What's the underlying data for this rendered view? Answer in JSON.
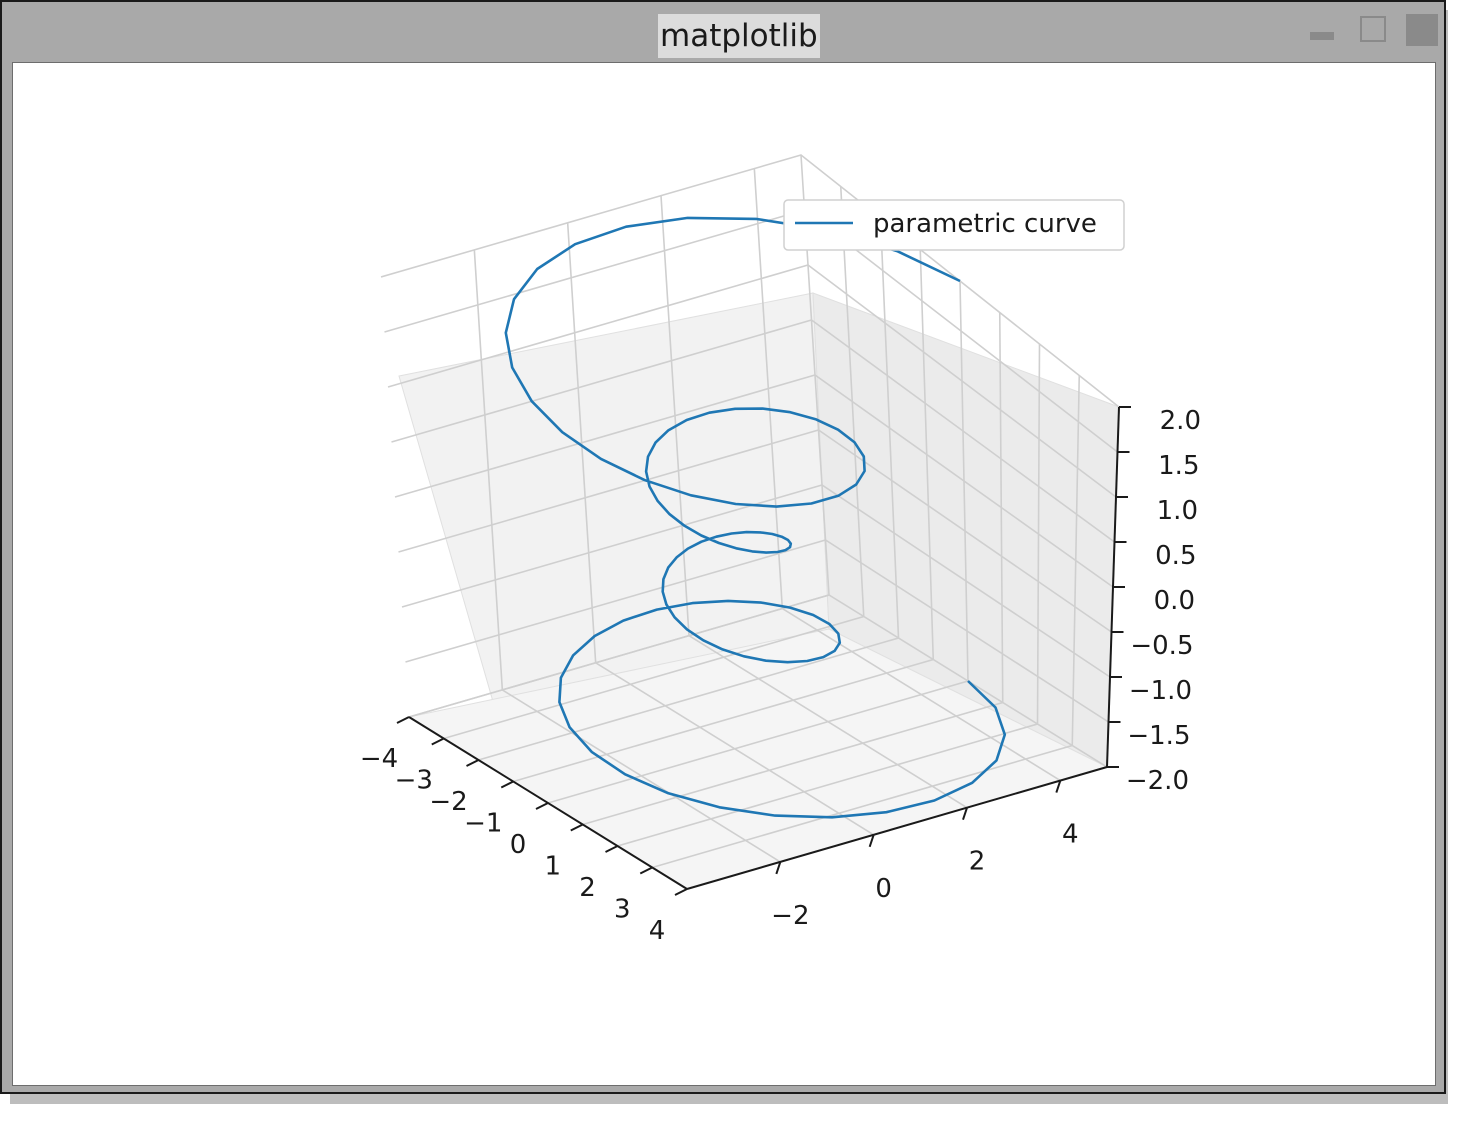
{
  "window": {
    "title": "matplotlib"
  },
  "colors": {
    "series": "#1f77b4",
    "pane": "#f2f2f2",
    "grid": "#cfcfcf"
  },
  "chart_data": {
    "type": "line",
    "projection": "3d",
    "legend": {
      "entries": [
        "parametric curve"
      ],
      "placement": "upper-right"
    },
    "xlim": [
      -4,
      4
    ],
    "ylim": [
      -4,
      5
    ],
    "zlim": [
      -2,
      2
    ],
    "x_ticks": [
      "−4",
      "−3",
      "−2",
      "−1",
      "0",
      "1",
      "2",
      "3",
      "4"
    ],
    "y_ticks": [
      "−2",
      "0",
      "2",
      "4"
    ],
    "z_ticks": [
      "2.0",
      "1.5",
      "1.0",
      "0.5",
      "0.0",
      "−0.5",
      "−1.0",
      "−1.5",
      "−2.0"
    ],
    "grid": true,
    "series": [
      {
        "name": "parametric curve",
        "formula": "theta from -4π to 4π, z from -2 to 2, r = z^2 + 1, x = r·sin(theta), y = r·cos(theta)",
        "samples": 100
      }
    ]
  }
}
